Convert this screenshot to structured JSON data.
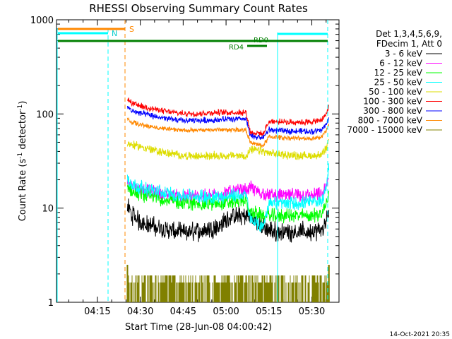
{
  "chart_data": {
    "type": "line",
    "title": "RHESSI Observing Summary Count Rates",
    "xlabel": "Start Time (28-Jun-08 04:00:42)",
    "ylabel_main": "Count Rate (s",
    "ylabel_sup1": "-1",
    "ylabel_mid": " detector",
    "ylabel_sup2": "-1",
    "ylabel_end": ")",
    "x_unit": "minutes after 04:00",
    "xlim": [
      0.7,
      99.5
    ],
    "ylim": [
      1,
      1000
    ],
    "y_scale": "log",
    "x_ticks": [
      {
        "value": 15,
        "label": "04:15"
      },
      {
        "value": 30,
        "label": "04:30"
      },
      {
        "value": 45,
        "label": "04:45"
      },
      {
        "value": 60,
        "label": "05:00"
      },
      {
        "value": 75,
        "label": "05:15"
      },
      {
        "value": 90,
        "label": "05:30"
      }
    ],
    "y_ticks": [
      {
        "value": 1,
        "label": "1"
      },
      {
        "value": 10,
        "label": "10"
      },
      {
        "value": 100,
        "label": "100"
      },
      {
        "value": 1000,
        "label": "1000"
      }
    ],
    "legend_header": [
      "Det 1,3,4,5,6,9,",
      "FDecim 1, Att 0"
    ],
    "legend_position": "right",
    "series": [
      {
        "name": "3 - 6 keV",
        "color": "#000000",
        "noise": 0.08,
        "points": [
          [
            25.5,
            10.5
          ],
          [
            27,
            8.5
          ],
          [
            30,
            7.2
          ],
          [
            35,
            6.3
          ],
          [
            40,
            5.8
          ],
          [
            45,
            5.5
          ],
          [
            52,
            5.8
          ],
          [
            58,
            6.5
          ],
          [
            61,
            8
          ],
          [
            67,
            8.3
          ],
          [
            68.5,
            8
          ],
          [
            69,
            8
          ],
          [
            71,
            7
          ],
          [
            73,
            6.2
          ],
          [
            75,
            5.8
          ],
          [
            78,
            5.6
          ],
          [
            85,
            5.6
          ],
          [
            90,
            5.6
          ],
          [
            93.5,
            5.8
          ],
          [
            95,
            7
          ],
          [
            96,
            9
          ]
        ]
      },
      {
        "name": "6 - 12 keV",
        "color": "#ff00ff",
        "noise": 0.06,
        "points": [
          [
            25.5,
            19
          ],
          [
            28,
            17
          ],
          [
            32,
            15.5
          ],
          [
            38,
            14.2
          ],
          [
            45,
            13.2
          ],
          [
            52,
            13.3
          ],
          [
            58,
            14
          ],
          [
            61,
            15
          ],
          [
            67,
            15.5
          ],
          [
            68.5,
            16.5
          ],
          [
            72,
            14.5
          ],
          [
            75,
            13.8
          ],
          [
            80,
            13.6
          ],
          [
            85,
            13.6
          ],
          [
            90,
            13.6
          ],
          [
            93.5,
            14
          ],
          [
            95,
            17
          ],
          [
            96,
            20
          ]
        ]
      },
      {
        "name": "12 - 25 keV",
        "color": "#00ff00",
        "noise": 0.06,
        "points": [
          [
            25.5,
            17
          ],
          [
            27,
            15
          ],
          [
            30,
            14
          ],
          [
            35,
            13
          ],
          [
            40,
            12
          ],
          [
            45,
            11.3
          ],
          [
            52,
            11
          ],
          [
            58,
            11.3
          ],
          [
            61,
            11.5
          ],
          [
            67,
            12
          ],
          [
            68.5,
            9
          ],
          [
            73,
            8.3
          ],
          [
            75,
            8.3
          ],
          [
            80,
            8.3
          ],
          [
            85,
            8.3
          ],
          [
            90,
            8.3
          ],
          [
            93.5,
            8.8
          ],
          [
            95,
            11
          ],
          [
            96,
            14
          ]
        ]
      },
      {
        "name": "25 - 50 keV",
        "color": "#00ffff",
        "noise": 0.06,
        "points": [
          [
            25.5,
            21
          ],
          [
            27,
            18
          ],
          [
            30,
            16.5
          ],
          [
            35,
            15.2
          ],
          [
            40,
            14.2
          ],
          [
            45,
            13.5
          ],
          [
            52,
            13.2
          ],
          [
            58,
            13.2
          ],
          [
            61,
            13.5
          ],
          [
            67,
            13.8
          ],
          [
            68.5,
            7.5
          ],
          [
            71,
            6.8
          ],
          [
            73,
            6.3
          ],
          [
            75,
            11.5
          ],
          [
            80,
            11.2
          ],
          [
            85,
            11.2
          ],
          [
            90,
            11.5
          ],
          [
            93.5,
            12
          ],
          [
            95,
            17
          ],
          [
            96,
            28
          ]
        ]
      },
      {
        "name": "50 - 100 keV",
        "color": "#dddd00",
        "noise": 0.035,
        "points": [
          [
            25.5,
            48
          ],
          [
            27,
            47
          ],
          [
            30,
            45
          ],
          [
            35,
            41
          ],
          [
            40,
            38
          ],
          [
            45,
            36
          ],
          [
            50,
            35.5
          ],
          [
            55,
            36
          ],
          [
            60,
            36
          ],
          [
            67,
            36
          ],
          [
            68.5,
            41
          ],
          [
            69.5,
            41
          ],
          [
            72,
            41
          ],
          [
            75,
            38
          ],
          [
            80,
            37
          ],
          [
            85,
            36
          ],
          [
            90,
            36
          ],
          [
            93.5,
            37
          ],
          [
            95,
            42
          ],
          [
            96,
            52
          ]
        ]
      },
      {
        "name": "100 - 300 keV",
        "color": "#ff0000",
        "noise": 0.025,
        "points": [
          [
            25.5,
            145
          ],
          [
            27,
            130
          ],
          [
            30,
            122
          ],
          [
            35,
            112
          ],
          [
            40,
            105
          ],
          [
            45,
            101
          ],
          [
            50,
            101
          ],
          [
            55,
            103
          ],
          [
            60,
            104
          ],
          [
            67,
            104
          ],
          [
            68.5,
            64
          ],
          [
            73,
            61
          ],
          [
            75,
            84
          ],
          [
            80,
            82
          ],
          [
            85,
            82
          ],
          [
            90,
            82
          ],
          [
            93.5,
            86
          ],
          [
            95,
            100
          ],
          [
            96,
            120
          ]
        ]
      },
      {
        "name": "300 - 800 keV",
        "color": "#0000ff",
        "noise": 0.025,
        "points": [
          [
            25.5,
            120
          ],
          [
            27,
            108
          ],
          [
            30,
            102
          ],
          [
            35,
            94
          ],
          [
            40,
            88
          ],
          [
            45,
            85
          ],
          [
            50,
            85
          ],
          [
            55,
            86
          ],
          [
            60,
            88
          ],
          [
            67,
            88
          ],
          [
            68.5,
            58
          ],
          [
            73,
            56
          ],
          [
            75,
            68
          ],
          [
            80,
            66
          ],
          [
            85,
            66
          ],
          [
            90,
            65
          ],
          [
            93.5,
            68
          ],
          [
            95,
            78
          ],
          [
            96,
            92
          ]
        ]
      },
      {
        "name": "800 - 7000 keV",
        "color": "#ff8800",
        "noise": 0.02,
        "points": [
          [
            25.5,
            88
          ],
          [
            27,
            82
          ],
          [
            30,
            77
          ],
          [
            35,
            72
          ],
          [
            40,
            69
          ],
          [
            45,
            67
          ],
          [
            50,
            67
          ],
          [
            55,
            68
          ],
          [
            60,
            68
          ],
          [
            67,
            68
          ],
          [
            68.5,
            49
          ],
          [
            73,
            46
          ],
          [
            75,
            57
          ],
          [
            80,
            56
          ],
          [
            85,
            55
          ],
          [
            90,
            55
          ],
          [
            93.5,
            57
          ],
          [
            95,
            66
          ],
          [
            96,
            78
          ]
        ]
      },
      {
        "name": "7000 - 15000 keV",
        "color": "#808000",
        "noise": 0,
        "points": []
      }
    ],
    "annotations": {
      "S_label": "S",
      "N_label": "N",
      "RD0_label": "RD0",
      "RD4_label": "RD4"
    },
    "footer_date": "14-Oct-2021 20:35"
  }
}
